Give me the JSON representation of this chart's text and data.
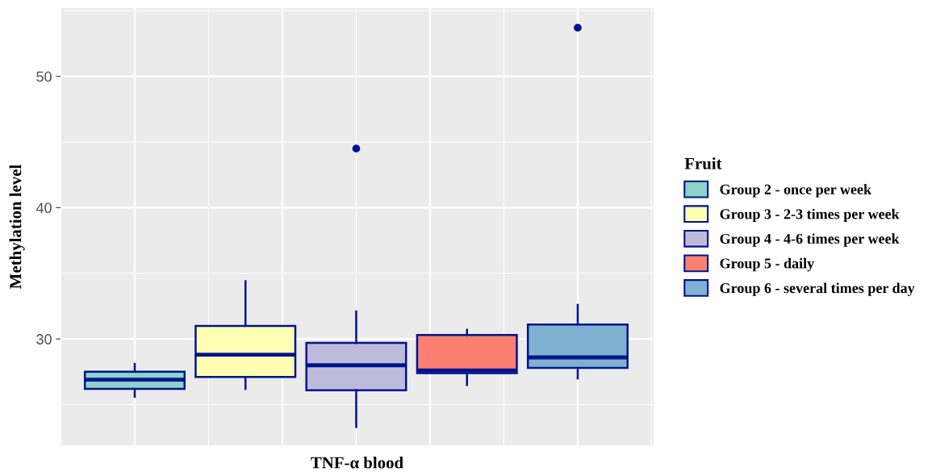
{
  "chart_data": {
    "type": "box",
    "xlabel": "TNF-α blood",
    "ylabel": "Methylation level",
    "legend_title": "Fruit",
    "categories": [
      null
    ],
    "series": [
      {
        "name": "Group 2 - once per week",
        "color": "#8dd3c7",
        "boxes": [
          {
            "low": 25.6,
            "q1": 26.2,
            "median": 26.9,
            "q3": 27.5,
            "high": 28.1
          }
        ]
      },
      {
        "name": "Group 3 - 2-3 times per week",
        "color": "#ffffb3",
        "boxes": [
          {
            "low": 26.2,
            "q1": 27.1,
            "median": 28.8,
            "q3": 31.0,
            "high": 34.4
          }
        ]
      },
      {
        "name": "Group 4 - 4-6 times per week",
        "color": "#bebada",
        "boxes": [
          {
            "low": 23.3,
            "q1": 26.1,
            "median": 28.0,
            "q3": 29.7,
            "high": 32.1,
            "outliers": [
              44.5
            ]
          }
        ]
      },
      {
        "name": "Group 5 - daily",
        "color": "#fb8072",
        "boxes": [
          {
            "low": 26.5,
            "q1": 27.4,
            "median": 27.6,
            "q3": 30.3,
            "high": 30.7
          }
        ]
      },
      {
        "name": "Group 6 - several times per day",
        "color": "#80b1d3",
        "boxes": [
          {
            "low": 27.0,
            "q1": 27.8,
            "median": 28.6,
            "q3": 31.1,
            "high": 32.6,
            "outliers": [
              53.7
            ]
          }
        ]
      }
    ],
    "ylim": [
      21.9,
      55.2
    ],
    "yticks": [
      30,
      40,
      50
    ],
    "grid": true,
    "legend": "right"
  }
}
